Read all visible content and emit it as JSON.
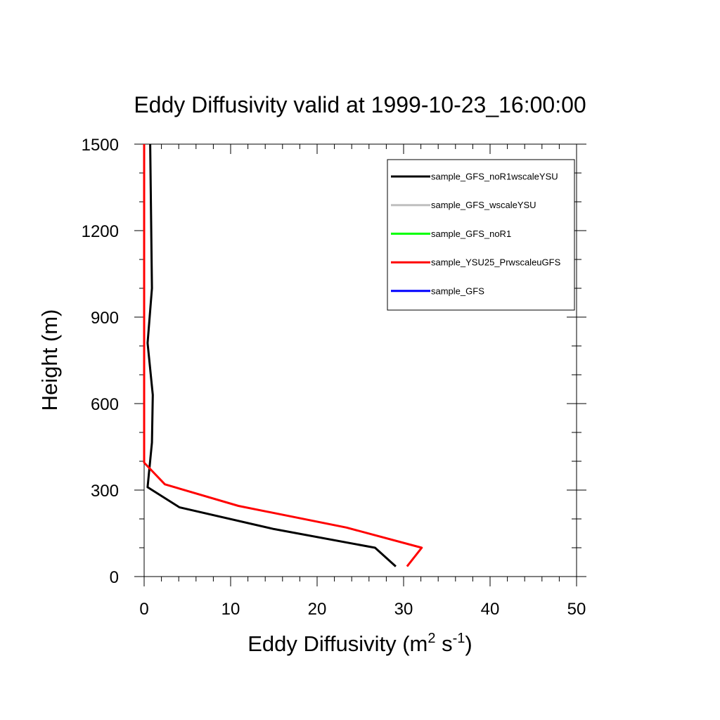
{
  "chart_data": {
    "type": "line",
    "title": "Eddy Diffusivity valid at 1999-10-23_16:00:00",
    "xlabel": {
      "text": "Eddy Diffusivity (m",
      "sup1": "2",
      "mid": " s",
      "sup2": "-1",
      "end": ")"
    },
    "ylabel": "Height (m)",
    "xlim": [
      0,
      50
    ],
    "ylim": [
      0,
      1500
    ],
    "x_ticks": [
      0,
      10,
      20,
      30,
      40,
      50
    ],
    "y_ticks": [
      0,
      300,
      600,
      900,
      1200,
      1500
    ],
    "x_minor_step": 2,
    "y_minor_step": 100,
    "grid": false,
    "legend_position": "top-right",
    "series": [
      {
        "name": "sample_GFS_noR1wscaleYSU",
        "color": "#000000",
        "x": [
          29.1,
          26.7,
          15.0,
          4.1,
          0.4,
          0.9,
          1.0,
          0.4,
          0.9,
          0.7
        ],
        "y": [
          35,
          100,
          165,
          240,
          310,
          465,
          630,
          810,
          1000,
          1500
        ]
      },
      {
        "name": "sample_GFS_wscaleYSU",
        "color": "#bfbfbf",
        "x": [],
        "y": []
      },
      {
        "name": "sample_GFS_noR1",
        "color": "#00ff00",
        "x": [],
        "y": []
      },
      {
        "name": "sample_YSU25_PrwscaleuGFS",
        "color": "#ff0000",
        "x": [
          30.4,
          32.1,
          23.4,
          10.9,
          2.4,
          0.0,
          0.0,
          0.0
        ],
        "y": [
          35,
          100,
          170,
          245,
          320,
          395,
          600,
          1500
        ]
      },
      {
        "name": "sample_GFS",
        "color": "#0000ff",
        "x": [],
        "y": []
      }
    ]
  }
}
